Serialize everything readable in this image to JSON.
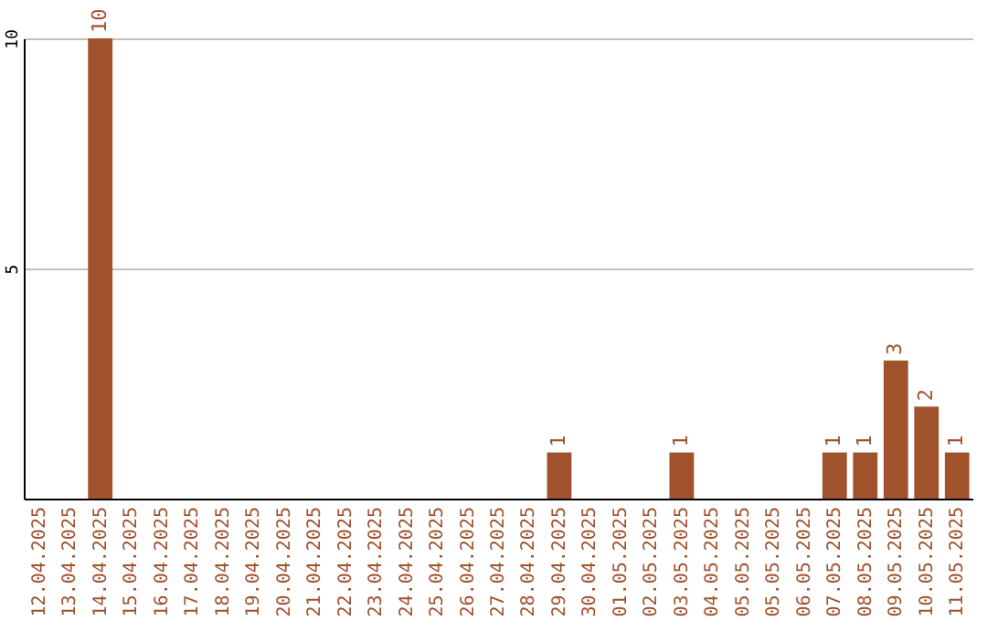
{
  "chart_data": {
    "type": "bar",
    "categories": [
      "12.04.2025",
      "13.04.2025",
      "14.04.2025",
      "15.04.2025",
      "16.04.2025",
      "17.04.2025",
      "18.04.2025",
      "19.04.2025",
      "20.04.2025",
      "21.04.2025",
      "22.04.2025",
      "23.04.2025",
      "24.04.2025",
      "25.04.2025",
      "26.04.2025",
      "27.04.2025",
      "28.04.2025",
      "29.04.2025",
      "30.04.2025",
      "01.05.2025",
      "02.05.2025",
      "03.05.2025",
      "04.05.2025",
      "05.05.2025",
      "05.05.2025",
      "06.05.2025",
      "07.05.2025",
      "08.05.2025",
      "09.05.2025",
      "10.05.2025",
      "11.05.2025"
    ],
    "values": [
      0,
      0,
      10,
      0,
      0,
      0,
      0,
      0,
      0,
      0,
      0,
      0,
      0,
      0,
      0,
      0,
      0,
      1,
      0,
      0,
      0,
      1,
      0,
      0,
      0,
      0,
      1,
      1,
      3,
      2,
      1
    ],
    "value_labels": [
      null,
      null,
      "10",
      null,
      null,
      null,
      null,
      null,
      null,
      null,
      null,
      null,
      null,
      null,
      null,
      null,
      null,
      "1",
      null,
      null,
      null,
      "1",
      null,
      null,
      null,
      null,
      "1",
      "1",
      "3",
      "2",
      "1"
    ],
    "color": "#a0522d",
    "ylim": [
      0,
      10
    ],
    "yticks": [
      {
        "value": 0,
        "label": null
      },
      5,
      10
    ],
    "grid": "y"
  }
}
